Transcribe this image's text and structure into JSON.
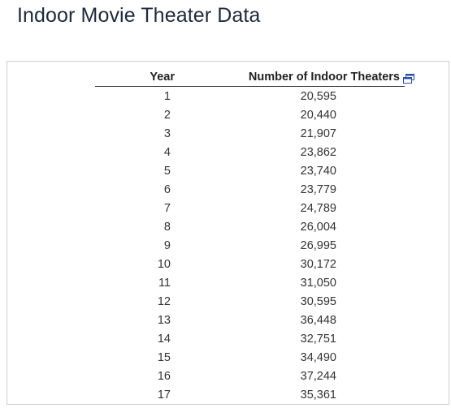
{
  "page": {
    "title": "Indoor Movie Theater Data"
  },
  "table": {
    "headers": {
      "year": "Year",
      "count": "Number of Indoor Theaters"
    },
    "rows": [
      {
        "year": "1",
        "count": "20,595"
      },
      {
        "year": "2",
        "count": "20,440"
      },
      {
        "year": "3",
        "count": "21,907"
      },
      {
        "year": "4",
        "count": "23,862"
      },
      {
        "year": "5",
        "count": "23,740"
      },
      {
        "year": "6",
        "count": "23,779"
      },
      {
        "year": "7",
        "count": "24,789"
      },
      {
        "year": "8",
        "count": "26,004"
      },
      {
        "year": "9",
        "count": "26,995"
      },
      {
        "year": "10",
        "count": "30,172"
      },
      {
        "year": "11",
        "count": "31,050"
      },
      {
        "year": "12",
        "count": "30,595"
      },
      {
        "year": "13",
        "count": "36,448"
      },
      {
        "year": "14",
        "count": "32,751"
      },
      {
        "year": "15",
        "count": "34,490"
      },
      {
        "year": "16",
        "count": "37,244"
      },
      {
        "year": "17",
        "count": "35,361"
      }
    ]
  },
  "icons": {
    "copy": "copy-to-clipboard-icon"
  },
  "colors": {
    "title": "#1f2a3a",
    "icon": "#2b4fa8"
  }
}
